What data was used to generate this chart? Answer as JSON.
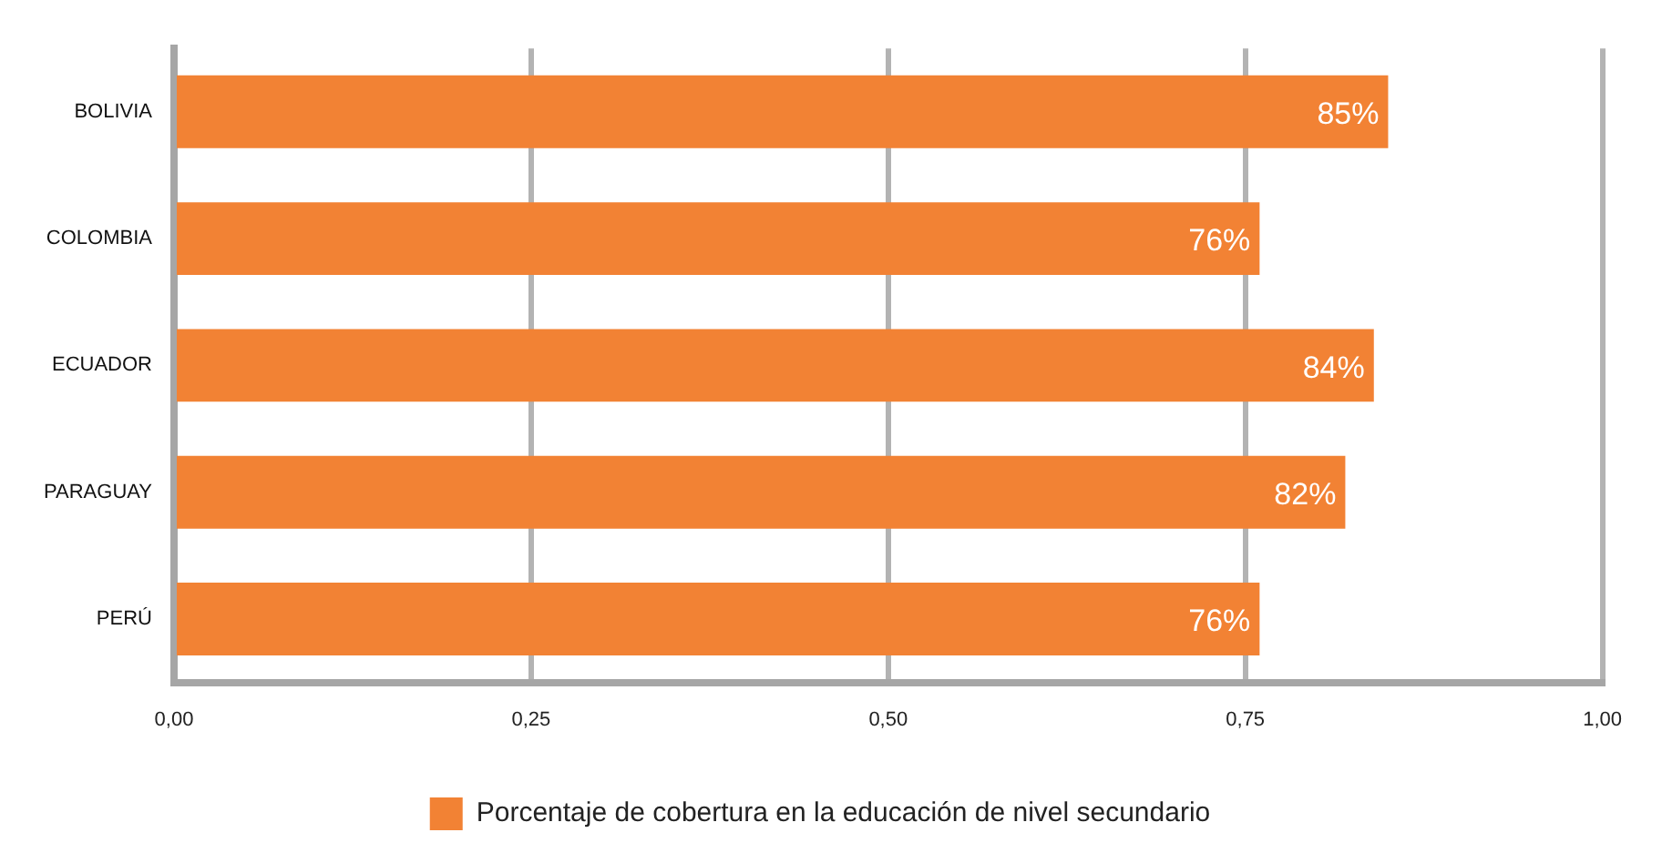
{
  "chart_data": {
    "type": "bar",
    "orientation": "horizontal",
    "categories": [
      "BOLIVIA",
      "COLOMBIA",
      "ECUADOR",
      "PARAGUAY",
      "PERÚ"
    ],
    "series": [
      {
        "name": "Porcentaje de cobertura en la educación de nivel secundario",
        "color": "#f28234",
        "values": [
          0.85,
          0.76,
          0.84,
          0.82,
          0.76
        ],
        "value_labels": [
          "85%",
          "76%",
          "84%",
          "82%",
          "76%"
        ]
      }
    ],
    "xlim": [
      0,
      1
    ],
    "xticks": [
      {
        "value": 0,
        "label": "0,00"
      },
      {
        "value": 0.25,
        "label": "0,25"
      },
      {
        "value": 0.5,
        "label": "0,50"
      },
      {
        "value": 0.75,
        "label": "0,75"
      },
      {
        "value": 1,
        "label": "1,00"
      }
    ],
    "grid": "x",
    "legend": "bottom"
  }
}
